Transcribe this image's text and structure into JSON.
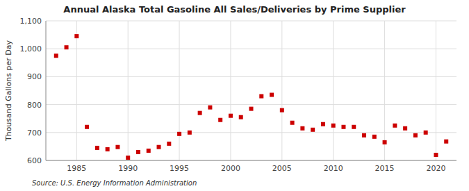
{
  "chart_data": {
    "type": "scatter",
    "title": "Annual Alaska Total Gasoline All Sales/Deliveries by Prime Supplier",
    "ylabel": "Thousand Gallons per Day",
    "annotations": [
      "Source: U.S. Energy Information Administration"
    ],
    "color": "#cc0000",
    "marker": "square",
    "grid": true,
    "xlim": [
      1982,
      2022
    ],
    "xticks": [
      1985,
      1990,
      1995,
      2000,
      2005,
      2010,
      2015,
      2020
    ],
    "ylim": [
      600,
      1100
    ],
    "yticks": [
      600,
      700,
      800,
      900,
      {
        "value": 1000,
        "label": "1,000"
      },
      {
        "value": 1100,
        "label": "1,100"
      }
    ],
    "x": [
      1983,
      1984,
      1985,
      1986,
      1987,
      1988,
      1989,
      1990,
      1991,
      1992,
      1993,
      1994,
      1995,
      1996,
      1997,
      1998,
      1999,
      2000,
      2001,
      2002,
      2003,
      2004,
      2005,
      2006,
      2007,
      2008,
      2009,
      2010,
      2011,
      2012,
      2013,
      2014,
      2015,
      2016,
      2017,
      2018,
      2019,
      2020,
      2021
    ],
    "values": [
      975,
      1005,
      1045,
      720,
      645,
      640,
      648,
      610,
      630,
      635,
      648,
      660,
      695,
      700,
      770,
      790,
      745,
      760,
      755,
      785,
      830,
      835,
      780,
      735,
      715,
      710,
      730,
      725,
      720,
      720,
      690,
      685,
      665,
      725,
      715,
      690,
      700,
      620,
      668
    ]
  }
}
